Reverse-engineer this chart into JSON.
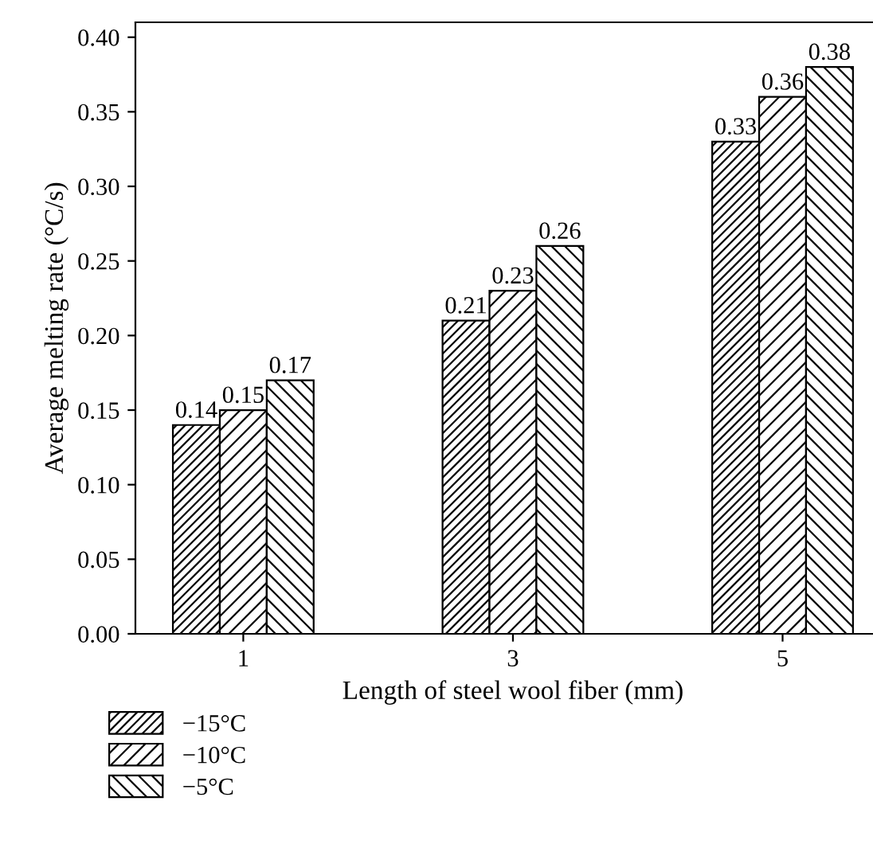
{
  "chart_data": {
    "type": "bar",
    "xlabel": "Length of steel wool fiber (mm)",
    "ylabel": "Average melting rate (°C/s)",
    "categories": [
      "1",
      "3",
      "5"
    ],
    "series": [
      {
        "name": "−15°C",
        "color": "#000000",
        "values": [
          0.14,
          0.21,
          0.33
        ]
      },
      {
        "name": "−10°C",
        "color": "#000000",
        "values": [
          0.15,
          0.23,
          0.36
        ]
      },
      {
        "name": "−5°C",
        "color": "#000000",
        "values": [
          0.17,
          0.26,
          0.38
        ]
      }
    ],
    "ylim": [
      0,
      0.41
    ],
    "yticks": [
      "0.00",
      "0.05",
      "0.10",
      "0.15",
      "0.20",
      "0.25",
      "0.30",
      "0.35",
      "0.40"
    ],
    "data_labels": true,
    "grid": false,
    "legend": "bottom"
  }
}
